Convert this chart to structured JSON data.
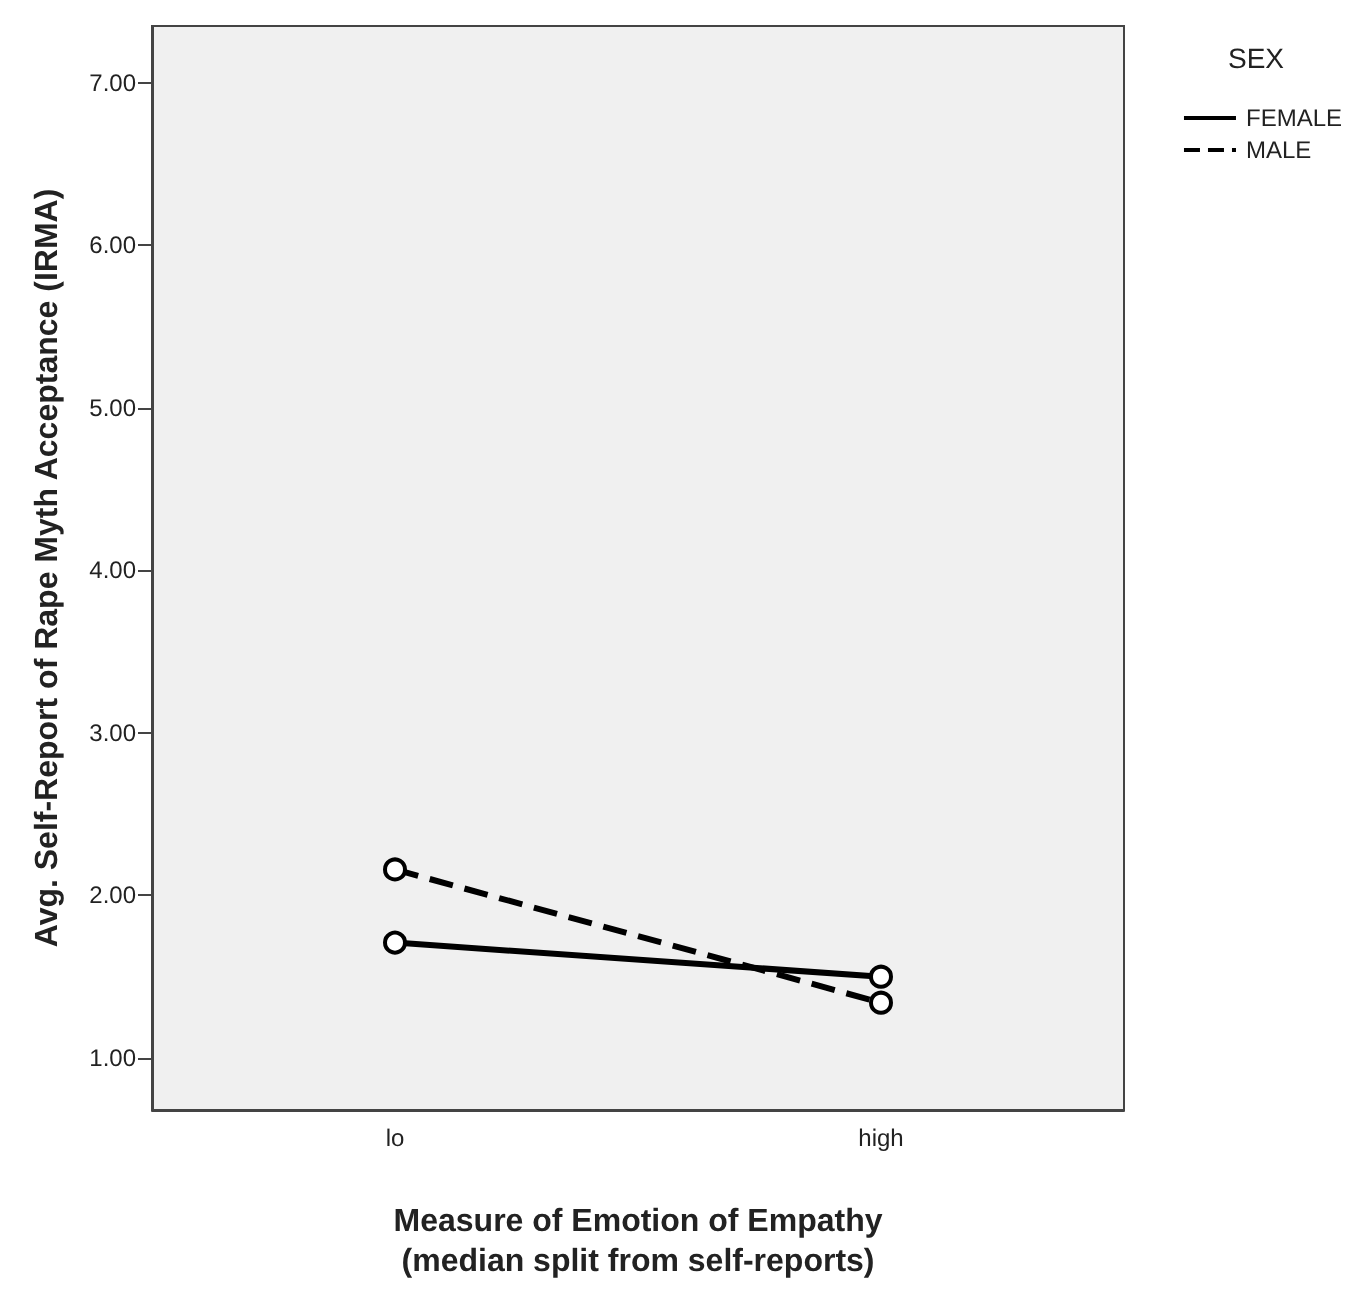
{
  "chart_data": {
    "type": "line",
    "xlabel": "Measure of Emotion of Empathy\n(median split from self-reports)",
    "ylabel": "Avg. Self-Report of Rape Myth Acceptance (IRMA)",
    "legend_title": "SEX",
    "categories": [
      "lo",
      "high"
    ],
    "series": [
      {
        "name": "FEMALE",
        "color": "#000000",
        "values": [
          1.71,
          1.5
        ],
        "line_style": "solid"
      },
      {
        "name": "MALE",
        "color": "#000000",
        "values": [
          2.16,
          1.34
        ],
        "line_style": "dashed"
      }
    ],
    "ylim": [
      0.68,
      7.35
    ],
    "yticks": [
      {
        "value": 1,
        "label": "1.00"
      },
      {
        "value": 2,
        "label": "2.00"
      },
      {
        "value": 3,
        "label": "3.00"
      },
      {
        "value": 4,
        "label": "4.00"
      },
      {
        "value": 5,
        "label": "5.00"
      },
      {
        "value": 6,
        "label": "6.00"
      },
      {
        "value": 7,
        "label": "7.00"
      }
    ],
    "grid": false,
    "legend": "top right",
    "marker": "circle"
  }
}
